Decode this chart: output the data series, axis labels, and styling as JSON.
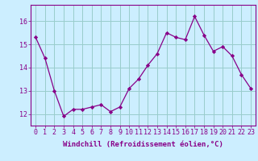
{
  "x": [
    0,
    1,
    2,
    3,
    4,
    5,
    6,
    7,
    8,
    9,
    10,
    11,
    12,
    13,
    14,
    15,
    16,
    17,
    18,
    19,
    20,
    21,
    22,
    23
  ],
  "y": [
    15.3,
    14.4,
    13.0,
    11.9,
    12.2,
    12.2,
    12.3,
    12.4,
    12.1,
    12.3,
    13.1,
    13.5,
    14.1,
    14.6,
    15.5,
    15.3,
    15.2,
    16.2,
    15.4,
    14.7,
    14.9,
    14.5,
    13.7,
    13.1
  ],
  "line_color": "#880088",
  "marker": "D",
  "marker_size": 2.2,
  "bg_color": "#cceeff",
  "grid_color": "#99cccc",
  "ylim": [
    11.5,
    16.7
  ],
  "yticks": [
    12,
    13,
    14,
    15,
    16
  ],
  "xlim": [
    -0.5,
    23.5
  ],
  "xlabel": "Windchill (Refroidissement éolien,°C)",
  "xlabel_fontsize": 6.5,
  "tick_fontsize": 6.0,
  "tick_color": "#880088",
  "axis_color": "#880088"
}
